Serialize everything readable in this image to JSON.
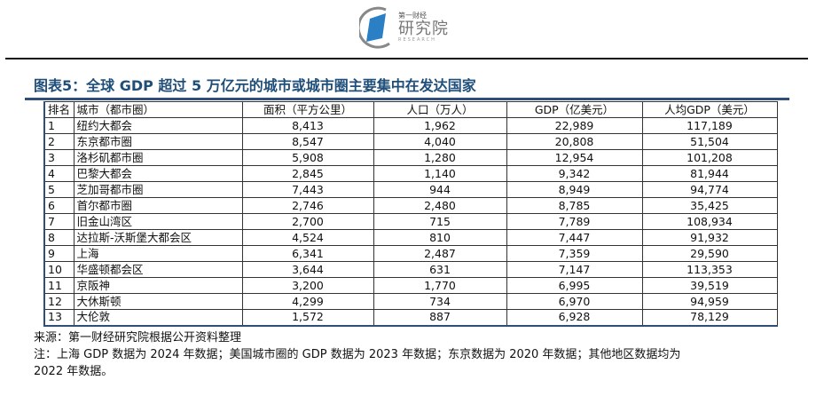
{
  "logo": {
    "line1": "第一财经",
    "line2": "研究院",
    "line3": "RESEARCH"
  },
  "title": "图表5：全球 GDP 超过 5 万亿元的城市或城市圈主要集中在发达国家",
  "table": {
    "headers": [
      "排名",
      "城市（都市圈）",
      "面积（平方公里）",
      "人口（万人）",
      "GDP（亿美元）",
      "人均GDP（美元）"
    ],
    "rows": [
      [
        "1",
        "纽约大都会",
        "8,413",
        "1,962",
        "22,989",
        "117,189"
      ],
      [
        "2",
        "东京都市圈",
        "8,547",
        "4,040",
        "20,808",
        "51,504"
      ],
      [
        "3",
        "洛杉矶都市圈",
        "5,908",
        "1,280",
        "12,954",
        "101,208"
      ],
      [
        "4",
        "巴黎大都会",
        "2,845",
        "1,140",
        "9,342",
        "81,944"
      ],
      [
        "5",
        "芝加哥都市圈",
        "7,443",
        "944",
        "8,949",
        "94,774"
      ],
      [
        "6",
        "首尔都市圈",
        "2,746",
        "2,480",
        "8,785",
        "35,425"
      ],
      [
        "7",
        "旧金山湾区",
        "2,700",
        "715",
        "7,789",
        "108,934"
      ],
      [
        "8",
        "达拉斯-沃斯堡大都会区",
        "4,524",
        "810",
        "7,447",
        "91,932"
      ],
      [
        "9",
        "上海",
        "6,341",
        "2,487",
        "7,359",
        "29,590"
      ],
      [
        "10",
        "华盛顿都会区",
        "3,644",
        "631",
        "7,147",
        "113,353"
      ],
      [
        "11",
        "京阪神",
        "3,200",
        "1,770",
        "6,995",
        "39,519"
      ],
      [
        "12",
        "大休斯顿",
        "4,299",
        "734",
        "6,970",
        "94,959"
      ],
      [
        "13",
        "大伦敦",
        "1,572",
        "887",
        "6,928",
        "78,129"
      ]
    ]
  },
  "source": "来源：第一财经研究院根据公开资料整理",
  "note_line1": "注：上海 GDP 数据为 2024 年数据；美国城市圈的 GDP 数据为 2023 年数据；东京数据为 2020 年数据；其他地区数据均为",
  "note_line2": "2022 年数据。"
}
